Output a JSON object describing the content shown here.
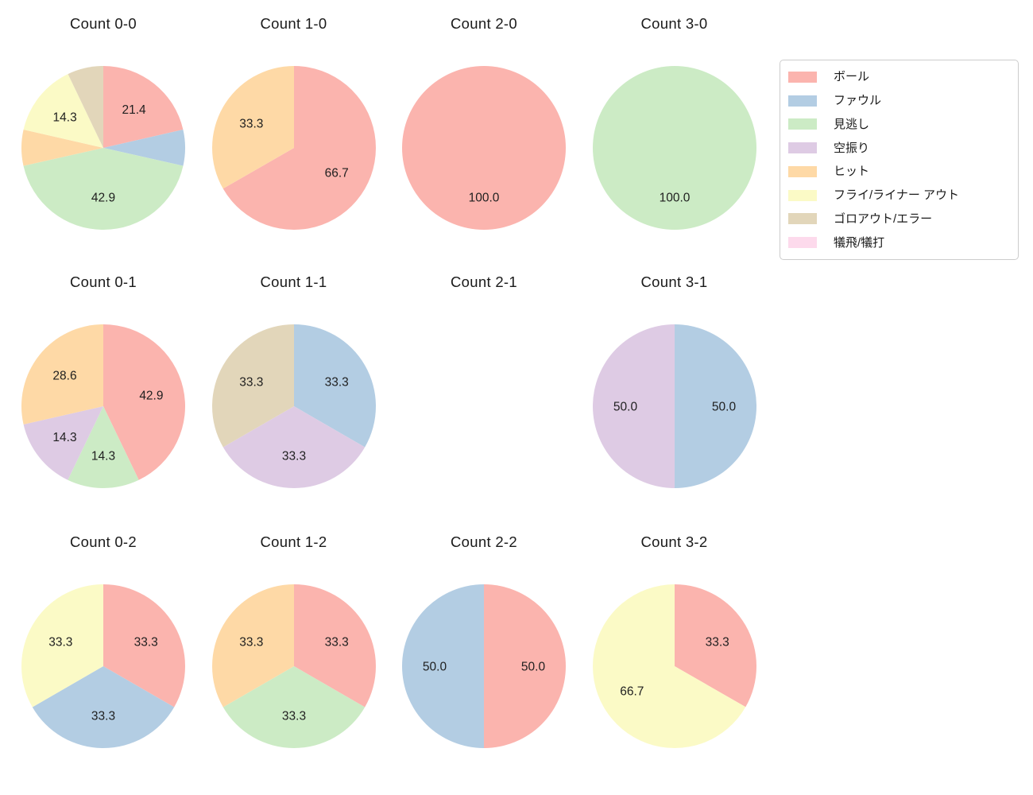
{
  "figure": {
    "background": "#ffffff"
  },
  "legend": {
    "items": [
      {
        "key": "ball",
        "label": "ボール",
        "color": "#fbb4ae"
      },
      {
        "key": "foul",
        "label": "ファウル",
        "color": "#b3cde3"
      },
      {
        "key": "called-strike",
        "label": "見逃し",
        "color": "#ccebc5"
      },
      {
        "key": "swinging-strike",
        "label": "空振り",
        "color": "#decbe4"
      },
      {
        "key": "hit",
        "label": "ヒット",
        "color": "#fed9a6"
      },
      {
        "key": "fly-liner-out",
        "label": "フライ/ライナー アウト",
        "color": "#fbfac6"
      },
      {
        "key": "groundout-error",
        "label": "ゴロアウト/エラー",
        "color": "#e2d6ba"
      },
      {
        "key": "sacrifice",
        "label": "犠飛/犠打",
        "color": "#fddaec"
      }
    ]
  },
  "chart_data": [
    {
      "type": "pie",
      "title": "Count 0-0",
      "slices": [
        {
          "key": "ball",
          "pct": 21.4,
          "pct_label": "21.4"
        },
        {
          "key": "foul",
          "pct": 7.1
        },
        {
          "key": "called-strike",
          "pct": 42.9,
          "pct_label": "42.9"
        },
        {
          "key": "hit",
          "pct": 7.1
        },
        {
          "key": "fly-liner-out",
          "pct": 14.3,
          "pct_label": "14.3"
        },
        {
          "key": "groundout-error",
          "pct": 7.1
        }
      ]
    },
    {
      "type": "pie",
      "title": "Count 1-0",
      "slices": [
        {
          "key": "ball",
          "pct": 66.7,
          "pct_label": "66.7"
        },
        {
          "key": "hit",
          "pct": 33.3,
          "pct_label": "33.3"
        }
      ]
    },
    {
      "type": "pie",
      "title": "Count 2-0",
      "slices": [
        {
          "key": "ball",
          "pct": 100.0,
          "pct_label": "100.0"
        }
      ]
    },
    {
      "type": "pie",
      "title": "Count 3-0",
      "slices": [
        {
          "key": "called-strike",
          "pct": 100.0,
          "pct_label": "100.0"
        }
      ]
    },
    {
      "type": "pie",
      "title": "Count 0-1",
      "slices": [
        {
          "key": "ball",
          "pct": 42.9,
          "pct_label": "42.9"
        },
        {
          "key": "called-strike",
          "pct": 14.3,
          "pct_label": "14.3"
        },
        {
          "key": "swinging-strike",
          "pct": 14.3,
          "pct_label": "14.3"
        },
        {
          "key": "hit",
          "pct": 28.6,
          "pct_label": "28.6"
        }
      ]
    },
    {
      "type": "pie",
      "title": "Count 1-1",
      "slices": [
        {
          "key": "foul",
          "pct": 33.3,
          "pct_label": "33.3"
        },
        {
          "key": "swinging-strike",
          "pct": 33.3,
          "pct_label": "33.3"
        },
        {
          "key": "groundout-error",
          "pct": 33.3,
          "pct_label": "33.3"
        }
      ]
    },
    {
      "type": "pie",
      "title": "Count 2-1",
      "slices": []
    },
    {
      "type": "pie",
      "title": "Count 3-1",
      "slices": [
        {
          "key": "foul",
          "pct": 50.0,
          "pct_label": "50.0"
        },
        {
          "key": "swinging-strike",
          "pct": 50.0,
          "pct_label": "50.0"
        }
      ]
    },
    {
      "type": "pie",
      "title": "Count 0-2",
      "slices": [
        {
          "key": "ball",
          "pct": 33.3,
          "pct_label": "33.3"
        },
        {
          "key": "foul",
          "pct": 33.3,
          "pct_label": "33.3"
        },
        {
          "key": "fly-liner-out",
          "pct": 33.3,
          "pct_label": "33.3"
        }
      ]
    },
    {
      "type": "pie",
      "title": "Count 1-2",
      "slices": [
        {
          "key": "ball",
          "pct": 33.3,
          "pct_label": "33.3"
        },
        {
          "key": "called-strike",
          "pct": 33.3,
          "pct_label": "33.3"
        },
        {
          "key": "hit",
          "pct": 33.3,
          "pct_label": "33.3"
        }
      ]
    },
    {
      "type": "pie",
      "title": "Count 2-2",
      "slices": [
        {
          "key": "ball",
          "pct": 50.0,
          "pct_label": "50.0"
        },
        {
          "key": "foul",
          "pct": 50.0,
          "pct_label": "50.0"
        }
      ]
    },
    {
      "type": "pie",
      "title": "Count 3-2",
      "slices": [
        {
          "key": "ball",
          "pct": 33.3,
          "pct_label": "33.3"
        },
        {
          "key": "fly-liner-out",
          "pct": 66.7,
          "pct_label": "66.7"
        }
      ]
    }
  ]
}
